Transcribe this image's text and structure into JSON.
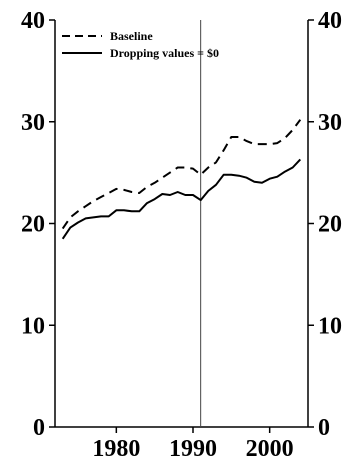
{
  "chart_data": {
    "type": "line",
    "title": "",
    "xlabel": "",
    "ylabel": "",
    "xlim": [
      1972,
      2005
    ],
    "ylim": [
      0,
      40
    ],
    "y_ticks": [
      0,
      10,
      20,
      30,
      40
    ],
    "x_ticks": [
      1980,
      1990,
      2000
    ],
    "y_axis_both_sides": true,
    "vertical_reference_line_x": 1991,
    "legend_position": "top-left",
    "grid": false,
    "series": [
      {
        "name": "Baseline",
        "style": "dashed",
        "color": "#000000",
        "x": [
          1973,
          1974,
          1975,
          1976,
          1977,
          1978,
          1979,
          1980,
          1981,
          1982,
          1983,
          1984,
          1985,
          1986,
          1987,
          1988,
          1989,
          1990,
          1991,
          1992,
          1993,
          1994,
          1995,
          1996,
          1997,
          1998,
          1999,
          2000,
          2001,
          2002,
          2003,
          2004
        ],
        "values": [
          19.5,
          20.6,
          21.2,
          21.7,
          22.2,
          22.6,
          23.0,
          23.4,
          23.3,
          23.1,
          23.0,
          23.6,
          24.0,
          24.5,
          25.0,
          25.5,
          25.5,
          25.4,
          24.8,
          25.5,
          26.0,
          27.2,
          28.5,
          28.5,
          28.1,
          27.8,
          27.8,
          27.8,
          27.9,
          28.4,
          29.2,
          30.2
        ]
      },
      {
        "name": "Dropping values = $0",
        "style": "solid",
        "color": "#000000",
        "x": [
          1973,
          1974,
          1975,
          1976,
          1977,
          1978,
          1979,
          1980,
          1981,
          1982,
          1983,
          1984,
          1985,
          1986,
          1987,
          1988,
          1989,
          1990,
          1991,
          1992,
          1993,
          1994,
          1995,
          1996,
          1997,
          1998,
          1999,
          2000,
          2001,
          2002,
          2003,
          2004
        ],
        "values": [
          18.5,
          19.6,
          20.1,
          20.5,
          20.6,
          20.7,
          20.7,
          21.3,
          21.3,
          21.2,
          21.2,
          22.0,
          22.4,
          22.9,
          22.8,
          23.1,
          22.8,
          22.8,
          22.3,
          23.2,
          23.8,
          24.8,
          24.8,
          24.7,
          24.5,
          24.1,
          24.0,
          24.4,
          24.6,
          25.1,
          25.5,
          26.3
        ]
      }
    ]
  }
}
